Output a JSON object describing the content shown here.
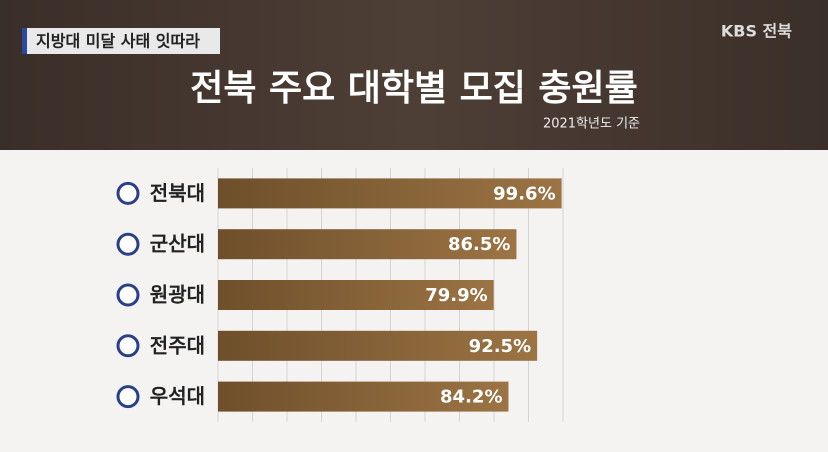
{
  "chart_data": {
    "type": "bar",
    "orientation": "horizontal",
    "tag": "지방대 미달 사태 잇따라",
    "logo": "KBS 전북",
    "title": "전북 주요 대학별 모집 충원률",
    "subtitle": "2021학년도 기준",
    "categories": [
      "전북대",
      "군산대",
      "원광대",
      "전주대",
      "우석대"
    ],
    "values": [
      99.6,
      86.5,
      79.9,
      92.5,
      84.2
    ],
    "value_labels": [
      "99.6%",
      "86.5%",
      "79.9%",
      "92.5%",
      "84.2%"
    ],
    "color": "#8a6638",
    "xlim": [
      0,
      100
    ],
    "xticks": [
      0,
      10,
      20,
      30,
      40,
      50,
      60,
      70,
      80,
      90,
      100
    ],
    "grid": true
  }
}
